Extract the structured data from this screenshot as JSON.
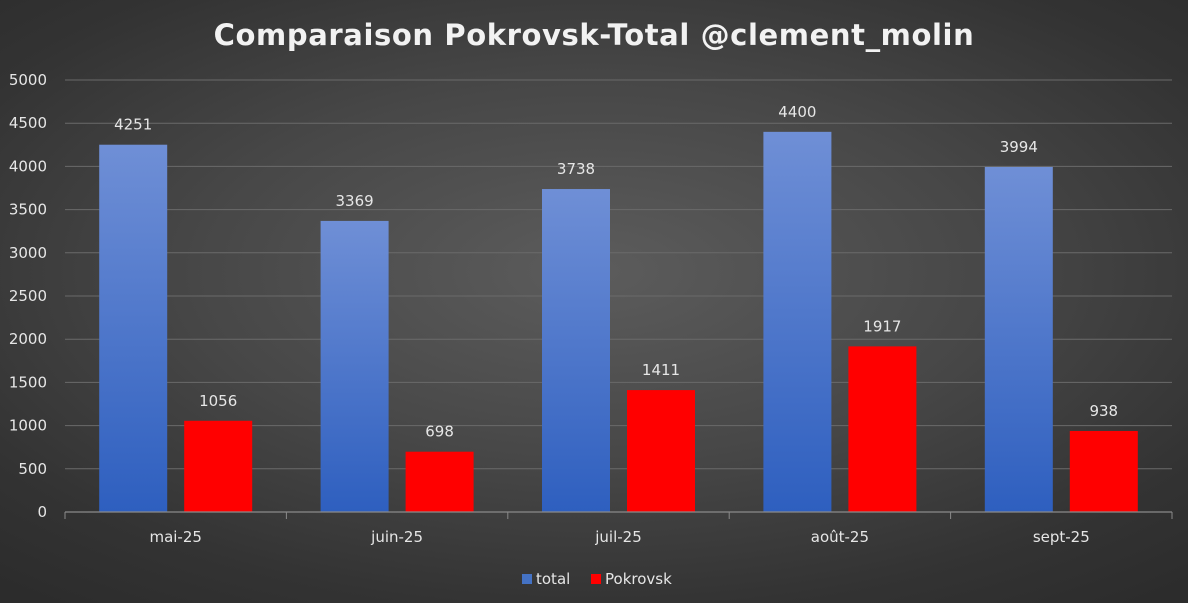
{
  "chart_data": {
    "type": "bar",
    "title": "Comparaison Pokrovsk-Total @clement_molin",
    "xlabel": "",
    "ylabel": "",
    "categories": [
      "mai-25",
      "juin-25",
      "juil-25",
      "août-25",
      "sept-25"
    ],
    "series": [
      {
        "name": "total",
        "values": [
          4251,
          3369,
          3738,
          4400,
          3994
        ],
        "color": "#4472c4"
      },
      {
        "name": "Pokrovsk",
        "values": [
          1056,
          698,
          1411,
          1917,
          938
        ],
        "color": "#ff0000"
      }
    ],
    "ylim": [
      0,
      5000
    ],
    "yticks": [
      0,
      500,
      1000,
      1500,
      2000,
      2500,
      3000,
      3500,
      4000,
      4500,
      5000
    ],
    "grid": true,
    "legend_position": "bottom",
    "data_labels": true
  }
}
